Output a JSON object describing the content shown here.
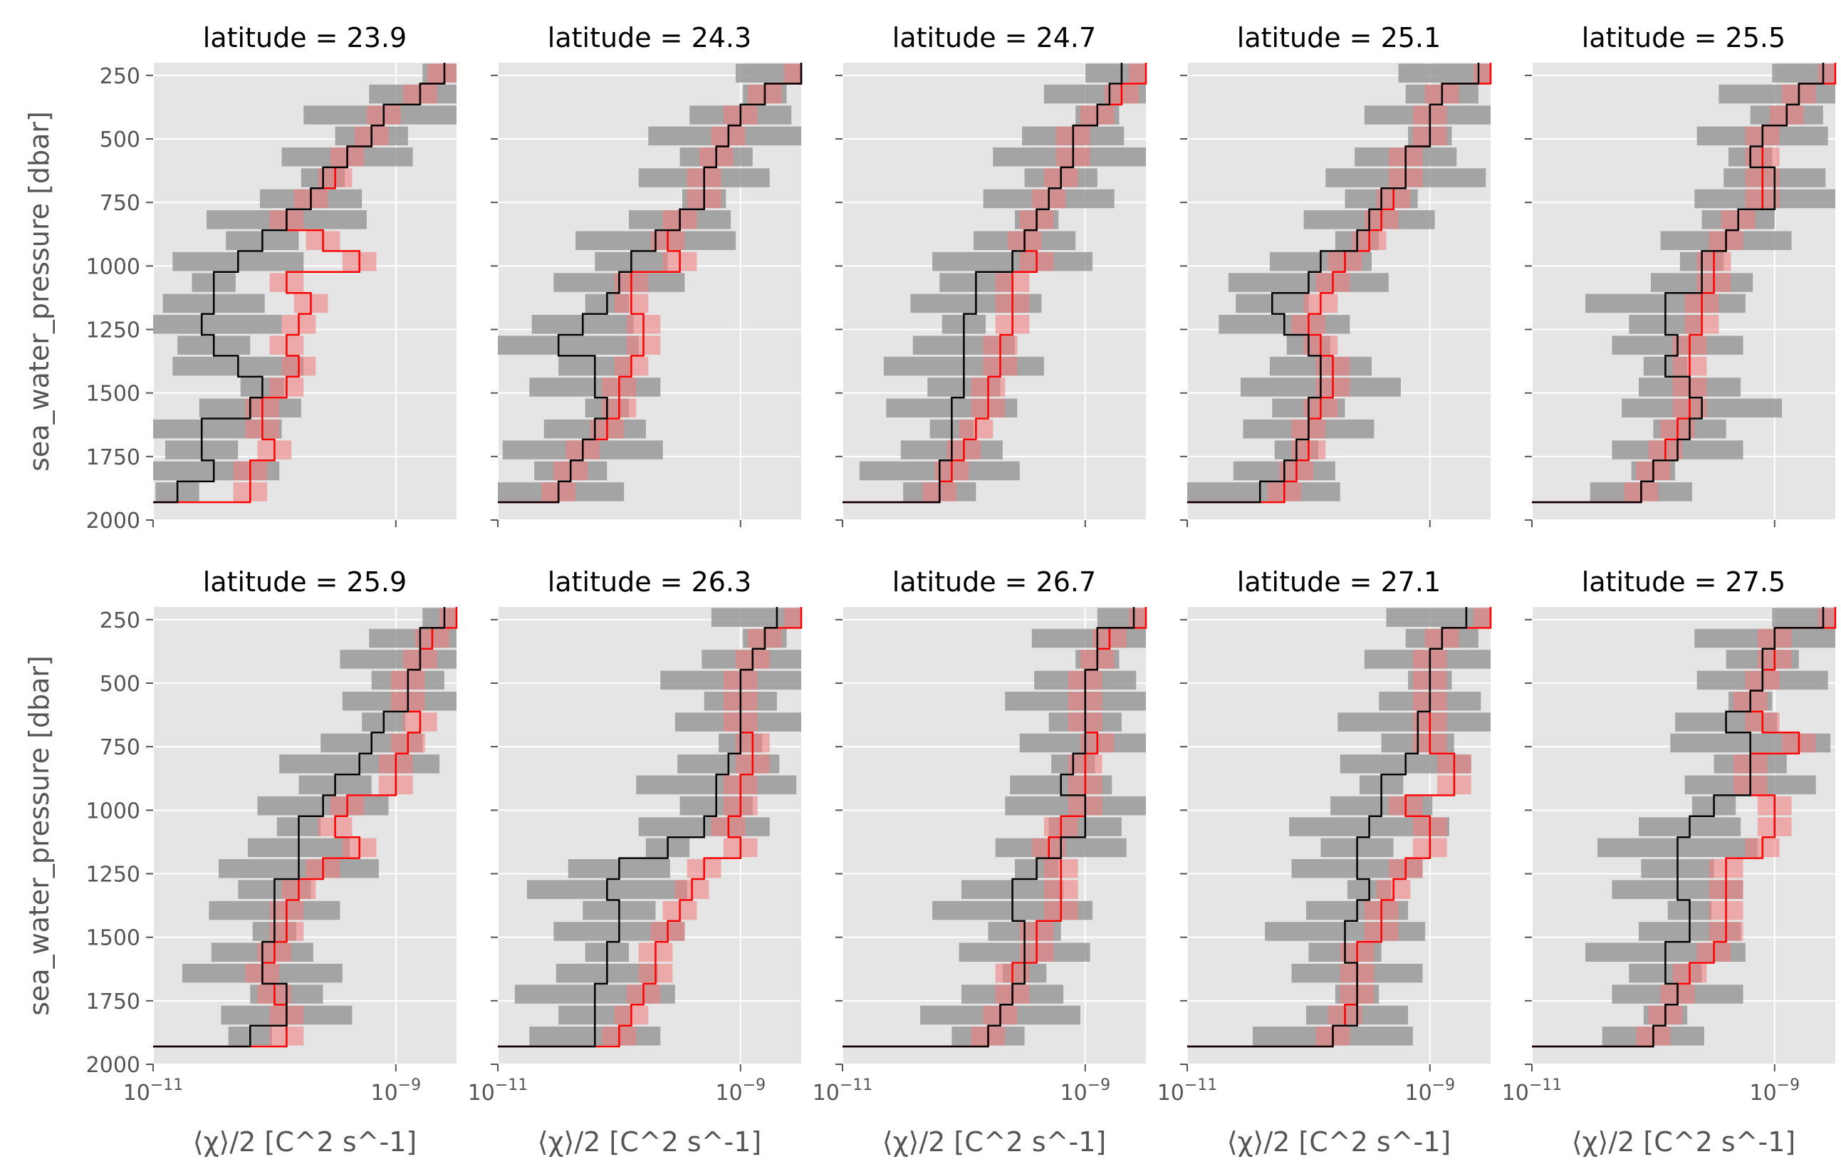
{
  "chart_data": {
    "type": "step",
    "ylabel": "sea_water_pressure [dbar]",
    "xlabel": "⟨χ⟩/2 [C^2 s^-1]",
    "xscale": "log",
    "xlim_log10": [
      -11,
      -8.5
    ],
    "ylim": [
      2000,
      200
    ],
    "yticks": [
      250,
      500,
      750,
      1000,
      1250,
      1500,
      1750,
      2000
    ],
    "ytick_labels": [
      "250",
      "500",
      "750",
      "1000",
      "1250",
      "1500",
      "1750",
      "2000"
    ],
    "xticks_log10": [
      -11,
      -9
    ],
    "xtick_bases": [
      "10",
      "10"
    ],
    "xtick_exps": [
      "−11",
      "−9"
    ],
    "series_names": [
      "black",
      "red"
    ],
    "series_colors": {
      "black": "#000000",
      "red": "#ff0000",
      "black_band": "#999999",
      "red_band": "#f08080",
      "panel_bg": "#e5e5e5",
      "grid": "#ffffff"
    },
    "panels": [
      {
        "title": "latitude = 23.9",
        "black": [
          -8.6,
          -8.8,
          -9.1,
          -9.2,
          -9.4,
          -9.6,
          -9.7,
          -9.9,
          -10.1,
          -10.3,
          -10.5,
          -10.5,
          -10.6,
          -10.5,
          -10.3,
          -10.1,
          -10.2,
          -10.6,
          -10.6,
          -10.5,
          -10.8
        ],
        "red": [
          -8.6,
          -8.8,
          -9.1,
          -9.2,
          -9.4,
          -9.5,
          -9.7,
          -9.9,
          -9.6,
          -9.3,
          -9.9,
          -9.7,
          -9.8,
          -9.9,
          -9.8,
          -9.9,
          -10.1,
          -10.1,
          -10.0,
          -10.2,
          -10.2
        ]
      },
      {
        "title": "latitude = 24.3",
        "black": [
          -8.5,
          -8.8,
          -9.0,
          -9.1,
          -9.2,
          -9.3,
          -9.3,
          -9.5,
          -9.7,
          -9.9,
          -10.0,
          -10.1,
          -10.3,
          -10.5,
          -10.2,
          -10.2,
          -10.1,
          -10.2,
          -10.3,
          -10.4,
          -10.5
        ],
        "red": [
          -8.5,
          -8.8,
          -9.0,
          -9.1,
          -9.2,
          -9.3,
          -9.3,
          -9.5,
          -9.6,
          -9.5,
          -9.9,
          -9.9,
          -9.8,
          -9.8,
          -9.9,
          -10.0,
          -10.0,
          -10.1,
          -10.3,
          -10.4,
          -10.5
        ]
      },
      {
        "title": "latitude = 24.7",
        "black": [
          -8.7,
          -8.8,
          -8.9,
          -9.1,
          -9.1,
          -9.2,
          -9.3,
          -9.4,
          -9.5,
          -9.6,
          -9.9,
          -9.9,
          -10.0,
          -10.0,
          -10.0,
          -10.0,
          -10.1,
          -10.1,
          -10.1,
          -10.2,
          -10.2
        ],
        "red": [
          -8.5,
          -8.7,
          -8.9,
          -9.1,
          -9.1,
          -9.2,
          -9.3,
          -9.4,
          -9.5,
          -9.4,
          -9.6,
          -9.6,
          -9.6,
          -9.7,
          -9.7,
          -9.8,
          -9.8,
          -9.9,
          -10.0,
          -10.1,
          -10.2
        ]
      },
      {
        "title": "latitude = 25.1",
        "black": [
          -8.6,
          -8.9,
          -9.0,
          -9.0,
          -9.2,
          -9.2,
          -9.4,
          -9.5,
          -9.6,
          -9.9,
          -10.0,
          -10.3,
          -10.2,
          -10.0,
          -9.9,
          -9.9,
          -10.0,
          -10.0,
          -10.1,
          -10.2,
          -10.4
        ],
        "red": [
          -8.5,
          -8.9,
          -9.0,
          -9.0,
          -9.2,
          -9.2,
          -9.3,
          -9.4,
          -9.5,
          -9.7,
          -9.8,
          -9.9,
          -10.0,
          -9.9,
          -9.8,
          -9.8,
          -9.9,
          -10.0,
          -10.0,
          -10.1,
          -10.2
        ]
      },
      {
        "title": "latitude = 25.5",
        "black": [
          -8.6,
          -8.8,
          -8.9,
          -9.1,
          -9.2,
          -9.0,
          -9.0,
          -9.3,
          -9.4,
          -9.6,
          -9.6,
          -9.9,
          -9.9,
          -9.8,
          -9.9,
          -9.7,
          -9.6,
          -9.7,
          -9.8,
          -10.0,
          -10.1
        ],
        "red": [
          -8.5,
          -8.8,
          -8.9,
          -9.1,
          -9.1,
          -9.1,
          -9.1,
          -9.3,
          -9.4,
          -9.5,
          -9.5,
          -9.6,
          -9.6,
          -9.7,
          -9.7,
          -9.7,
          -9.7,
          -9.8,
          -9.9,
          -10.0,
          -10.1
        ]
      },
      {
        "title": "latitude = 25.9",
        "black": [
          -8.6,
          -8.8,
          -8.8,
          -8.9,
          -8.9,
          -9.1,
          -9.2,
          -9.3,
          -9.5,
          -9.6,
          -9.8,
          -9.8,
          -9.8,
          -10.0,
          -10.0,
          -10.0,
          -10.1,
          -10.1,
          -9.9,
          -9.9,
          -10.2
        ],
        "red": [
          -8.5,
          -8.7,
          -8.8,
          -8.9,
          -8.9,
          -8.8,
          -8.9,
          -9.0,
          -9.0,
          -9.4,
          -9.5,
          -9.3,
          -9.6,
          -9.8,
          -9.9,
          -9.9,
          -10.0,
          -10.1,
          -10.0,
          -9.9,
          -9.9
        ]
      },
      {
        "title": "latitude = 26.3",
        "black": [
          -8.7,
          -8.8,
          -8.9,
          -9.0,
          -9.0,
          -9.0,
          -9.0,
          -9.1,
          -9.2,
          -9.2,
          -9.3,
          -9.6,
          -10.0,
          -10.1,
          -10.0,
          -10.0,
          -10.1,
          -10.1,
          -10.2,
          -10.2,
          -10.2
        ],
        "red": [
          -8.5,
          -8.8,
          -8.9,
          -9.0,
          -9.0,
          -9.0,
          -8.9,
          -8.9,
          -9.0,
          -9.0,
          -9.1,
          -9.0,
          -9.3,
          -9.4,
          -9.5,
          -9.6,
          -9.7,
          -9.7,
          -9.8,
          -9.9,
          -10.0
        ]
      },
      {
        "title": "latitude = 26.7",
        "black": [
          -8.6,
          -8.9,
          -8.9,
          -9.0,
          -9.0,
          -9.0,
          -9.0,
          -9.1,
          -9.2,
          -9.0,
          -9.0,
          -9.2,
          -9.4,
          -9.6,
          -9.6,
          -9.5,
          -9.5,
          -9.5,
          -9.6,
          -9.7,
          -9.8
        ],
        "red": [
          -8.5,
          -8.8,
          -8.9,
          -9.0,
          -9.0,
          -9.0,
          -8.9,
          -9.0,
          -9.0,
          -9.0,
          -9.2,
          -9.3,
          -9.2,
          -9.2,
          -9.2,
          -9.4,
          -9.4,
          -9.6,
          -9.6,
          -9.7,
          -9.8
        ]
      },
      {
        "title": "latitude = 27.1",
        "black": [
          -8.7,
          -8.9,
          -9.0,
          -9.0,
          -9.0,
          -9.1,
          -9.1,
          -9.2,
          -9.4,
          -9.4,
          -9.5,
          -9.6,
          -9.6,
          -9.5,
          -9.6,
          -9.7,
          -9.7,
          -9.6,
          -9.6,
          -9.6,
          -9.8
        ],
        "red": [
          -8.5,
          -8.9,
          -9.0,
          -9.0,
          -9.0,
          -9.0,
          -9.0,
          -8.8,
          -8.8,
          -9.2,
          -9.0,
          -9.0,
          -9.2,
          -9.3,
          -9.4,
          -9.4,
          -9.6,
          -9.6,
          -9.6,
          -9.7,
          -9.8
        ]
      },
      {
        "title": "latitude = 27.5",
        "black": [
          -8.6,
          -9.0,
          -9.1,
          -9.1,
          -9.2,
          -9.4,
          -9.2,
          -9.2,
          -9.2,
          -9.5,
          -9.7,
          -9.8,
          -9.8,
          -9.8,
          -9.7,
          -9.7,
          -9.9,
          -9.9,
          -9.8,
          -9.9,
          -10.0
        ],
        "red": [
          -8.5,
          -9.0,
          -9.0,
          -9.1,
          -9.2,
          -9.1,
          -8.8,
          -9.2,
          -9.2,
          -9.0,
          -9.0,
          -9.1,
          -9.4,
          -9.4,
          -9.4,
          -9.4,
          -9.5,
          -9.7,
          -9.8,
          -9.9,
          -10.0
        ]
      }
    ]
  }
}
